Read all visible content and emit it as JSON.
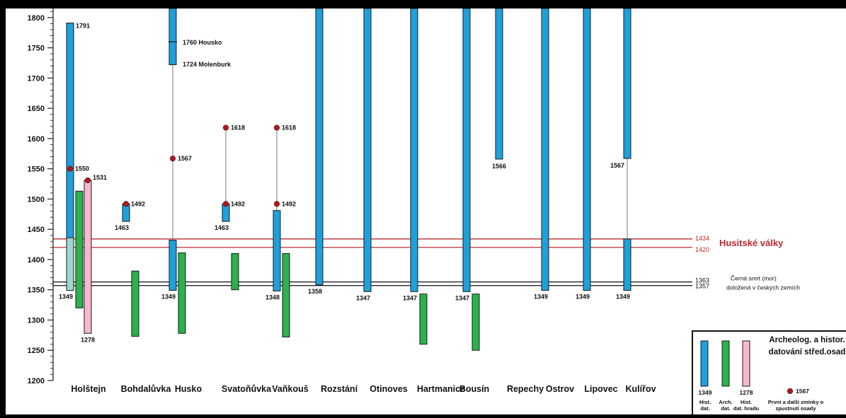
{
  "chart_data": {
    "type": "range-bar",
    "ylim": [
      1200,
      1815
    ],
    "y_ticks": [
      1200,
      1250,
      1300,
      1350,
      1400,
      1450,
      1500,
      1550,
      1600,
      1650,
      1700,
      1750,
      1800
    ],
    "colors": {
      "hist": "#1ea0dc",
      "hist_light": "#9ed6d0",
      "arch": "#2bb24c",
      "castle": "#f7b8cc",
      "event": "#b4181c",
      "event_text": "#c0282c",
      "plague": "#111111"
    },
    "settlements": [
      {
        "name": "Holštejn",
        "hist": [
          {
            "from": 1349,
            "to": 1791
          }
        ],
        "hist_light": [
          {
            "from": 1349,
            "to": 1436
          }
        ],
        "hist_label": "1349",
        "end_label": "1791",
        "arch": [
          {
            "from": 1320,
            "to": 1513
          }
        ],
        "castle": [
          {
            "from": 1278,
            "to": 1531
          }
        ],
        "castle_labels": [
          "1278",
          "1531"
        ],
        "points": [
          {
            "year": 1550,
            "label": "1550"
          },
          {
            "year": 1531,
            "label": ""
          }
        ],
        "links": [
          {
            "from": 1525,
            "to": 1791
          }
        ]
      },
      {
        "name": "Bohdalůvka",
        "hist": [
          {
            "from": 1463,
            "to": 1492
          }
        ],
        "hist_label": "1463",
        "arch": [
          {
            "from": 1273,
            "to": 1381
          }
        ],
        "points": [
          {
            "year": 1492,
            "label": "1492"
          }
        ]
      },
      {
        "name": "Husko",
        "hist": [
          {
            "from": 1349,
            "to": 1432
          },
          {
            "from": 1722,
            "to": 1815
          }
        ],
        "hist_label": "1349",
        "arch": [
          {
            "from": 1278,
            "to": 1411
          }
        ],
        "points": [
          {
            "year": 1567,
            "label": "1567"
          }
        ],
        "links": [
          {
            "from": 1432,
            "to": 1722
          }
        ],
        "annotations": [
          {
            "year": 1760,
            "label": "1760  Housko",
            "tick": true
          },
          {
            "year": 1724,
            "label": "1724  Molenburk"
          }
        ]
      },
      {
        "name": "Svatoňůvka",
        "hist": [
          {
            "from": 1463,
            "to": 1492
          }
        ],
        "hist_label": "1463",
        "arch": [
          {
            "from": 1350,
            "to": 1410
          }
        ],
        "points": [
          {
            "year": 1618,
            "label": "1618"
          },
          {
            "year": 1492,
            "label": "1492"
          }
        ],
        "links": [
          {
            "from": 1492,
            "to": 1618
          }
        ]
      },
      {
        "name": "Vaňkouš",
        "hist": [
          {
            "from": 1348,
            "to": 1481
          }
        ],
        "hist_label": "1348",
        "arch": [
          {
            "from": 1272,
            "to": 1410
          }
        ],
        "points": [
          {
            "year": 1618,
            "label": "1618"
          },
          {
            "year": 1492,
            "label": "1492"
          }
        ],
        "links": [
          {
            "from": 1481,
            "to": 1618
          }
        ]
      },
      {
        "name": "Rozstání",
        "hist": [
          {
            "from": 1358,
            "to": 1815
          }
        ],
        "hist_label": "1358"
      },
      {
        "name": "Otinoves",
        "hist": [
          {
            "from": 1347,
            "to": 1815
          }
        ],
        "hist_label": "1347"
      },
      {
        "name": "Hartmanice",
        "hist": [
          {
            "from": 1347,
            "to": 1815
          }
        ],
        "hist_label": "1347",
        "arch": [
          {
            "from": 1260,
            "to": 1343
          }
        ]
      },
      {
        "name": "Bousín",
        "hist": [
          {
            "from": 1347,
            "to": 1815
          }
        ],
        "hist_label": "1347",
        "arch": [
          {
            "from": 1250,
            "to": 1343
          }
        ]
      },
      {
        "name": "Repechy",
        "hist": [
          {
            "from": 1566,
            "to": 1815
          }
        ],
        "end_label": "1566"
      },
      {
        "name": "Ostrov",
        "hist": [
          {
            "from": 1349,
            "to": 1815
          }
        ],
        "hist_label": "1349"
      },
      {
        "name": "Lipovec",
        "hist": [
          {
            "from": 1349,
            "to": 1815
          }
        ],
        "hist_label": "1349"
      },
      {
        "name": "Kulířov",
        "hist": [
          {
            "from": 1349,
            "to": 1434
          },
          {
            "from": 1567,
            "to": 1815
          }
        ],
        "hist_label": "1349",
        "end_label": "1567",
        "links": [
          {
            "from": 1434,
            "to": 1567
          }
        ]
      }
    ],
    "events": [
      {
        "from": 1420,
        "to": 1434,
        "label": "Husitské války",
        "start_label": "1420",
        "end_label": "1434",
        "style": "red"
      },
      {
        "from": 1357,
        "to": 1363,
        "label_lines": [
          "Černá smrt (mor)",
          "doložená v českých zemích"
        ],
        "start_label": "1357",
        "end_label": "1363",
        "style": "black"
      }
    ],
    "legend": {
      "title_lines": [
        "Archeolog. a histor.",
        "datování střed.osad"
      ],
      "hist_value": "1349",
      "castle_value": "1278",
      "point_value": "1567",
      "hist_caption": [
        "Hist.",
        "dat."
      ],
      "arch_caption": [
        "Arch.",
        "dat."
      ],
      "castle_caption": [
        "Hist.",
        "dat. hradu"
      ],
      "point_caption": [
        "První a další zmínky o",
        "zpustnutí osady"
      ]
    }
  }
}
